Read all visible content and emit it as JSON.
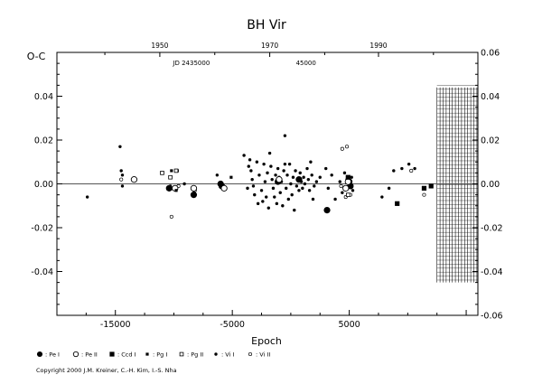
{
  "chart_data": {
    "type": "scatter",
    "title": "BH  Vir",
    "ylabel": "O-C",
    "xlabel": "Epoch",
    "xlim": [
      -20000,
      16000
    ],
    "ylim": [
      -0.06,
      0.06
    ],
    "x_ticks": [
      {
        "value": -15000,
        "label": "-15000"
      },
      {
        "value": -5000,
        "label": "-5000"
      },
      {
        "value": 5000,
        "label": "5000"
      }
    ],
    "y_ticks": [
      {
        "value": 0.04,
        "label": "0.04"
      },
      {
        "value": 0.02,
        "label": "0.02"
      },
      {
        "value": 0.0,
        "label": "0.00"
      },
      {
        "value": -0.02,
        "label": "-0.02"
      },
      {
        "value": -0.04,
        "label": "-0.04"
      }
    ],
    "y_ticks_right": [
      {
        "value": 0.06,
        "label": "0.06"
      },
      {
        "value": 0.04,
        "label": "0.04"
      },
      {
        "value": 0.02,
        "label": "0.02"
      },
      {
        "value": 0.0,
        "label": "0.00"
      },
      {
        "value": -0.02,
        "label": "-0.02"
      },
      {
        "value": -0.04,
        "label": "-0.04"
      },
      {
        "value": -0.06,
        "label": "-0.06"
      }
    ],
    "year_ticks": [
      {
        "value": -11200,
        "label": "1950"
      },
      {
        "value": -1800,
        "label": "1970"
      },
      {
        "value": 7500,
        "label": "1990"
      }
    ],
    "year_minor_ticks": [
      -15900,
      -6500,
      2900,
      12200
    ],
    "jd_labels": [
      {
        "value": -8500,
        "label": "JD 2435000"
      },
      {
        "value": 1300,
        "label": "45000"
      }
    ],
    "future_region_start": 12500,
    "grid": false,
    "legend_position": "bottom",
    "legend": [
      {
        "symbol": "pe1",
        "label": ": Pe I"
      },
      {
        "symbol": "pe2",
        "label": ": Pe II"
      },
      {
        "symbol": "ccd1",
        "label": ": Ccd I"
      },
      {
        "symbol": "pg1",
        "label": ": Pg I"
      },
      {
        "symbol": "pg2",
        "label": ": Pg II"
      },
      {
        "symbol": "vi1",
        "label": ": Vi I"
      },
      {
        "symbol": "vi2",
        "label": ": Vi II"
      }
    ],
    "series": [
      {
        "symbol": "vi1",
        "points": [
          [
            -17400,
            -0.006
          ],
          [
            -14600,
            0.017
          ],
          [
            -14500,
            0.006
          ],
          [
            -14400,
            0.004
          ],
          [
            -14400,
            -0.001
          ],
          [
            -4000,
            0.013
          ],
          [
            -3600,
            0.008
          ],
          [
            -3400,
            0.006
          ],
          [
            -3300,
            0.002
          ],
          [
            -3200,
            -0.001
          ],
          [
            -3100,
            -0.005
          ],
          [
            -2900,
            0.01
          ],
          [
            -2700,
            0.004
          ],
          [
            -2500,
            -0.003
          ],
          [
            -2400,
            -0.008
          ],
          [
            -2300,
            0.009
          ],
          [
            -2200,
            0.001
          ],
          [
            -2100,
            -0.006
          ],
          [
            -2000,
            0.005
          ],
          [
            -1900,
            -0.011
          ],
          [
            -1700,
            0.008
          ],
          [
            -1600,
            0.002
          ],
          [
            -1500,
            -0.002
          ],
          [
            -1400,
            -0.006
          ],
          [
            -1300,
            0.004
          ],
          [
            -1200,
            -0.009
          ],
          [
            -1100,
            0.007
          ],
          [
            -1000,
            0.003
          ],
          [
            -900,
            -0.004
          ],
          [
            -800,
            0.001
          ],
          [
            -700,
            -0.01
          ],
          [
            -600,
            0.006
          ],
          [
            -500,
            0.022
          ],
          [
            -400,
            -0.002
          ],
          [
            -300,
            0.004
          ],
          [
            -200,
            -0.007
          ],
          [
            -100,
            0.009
          ],
          [
            0,
            0.0
          ],
          [
            100,
            -0.005
          ],
          [
            200,
            0.003
          ],
          [
            300,
            -0.012
          ],
          [
            400,
            0.006
          ],
          [
            500,
            -0.001
          ],
          [
            600,
            0.002
          ],
          [
            700,
            -0.003
          ],
          [
            800,
            0.005
          ],
          [
            900,
            0.001
          ],
          [
            1000,
            -0.002
          ],
          [
            1100,
            0.003
          ],
          [
            1200,
            0.0
          ],
          [
            1400,
            0.007
          ],
          [
            1500,
            0.002
          ],
          [
            1600,
            -0.003
          ],
          [
            1700,
            0.01
          ],
          [
            1800,
            0.004
          ],
          [
            2000,
            -0.001
          ],
          [
            2200,
            0.001
          ],
          [
            2500,
            0.003
          ],
          [
            3000,
            0.007
          ],
          [
            3200,
            -0.002
          ],
          [
            3500,
            0.004
          ],
          [
            3800,
            -0.007
          ],
          [
            4200,
            0.001
          ],
          [
            4400,
            -0.004
          ],
          [
            4600,
            0.005
          ],
          [
            4800,
            0.002
          ],
          [
            5000,
            0.0
          ],
          [
            5200,
            0.003
          ],
          [
            5300,
            -0.003
          ],
          [
            7800,
            -0.006
          ],
          [
            8400,
            -0.002
          ],
          [
            8800,
            0.006
          ],
          [
            9500,
            0.007
          ],
          [
            10100,
            0.009
          ],
          [
            10600,
            0.007
          ],
          [
            -6300,
            0.004
          ],
          [
            -5900,
            0.0
          ],
          [
            -10300,
            -0.001
          ],
          [
            -9100,
            0.0
          ],
          [
            -1800,
            0.014
          ],
          [
            -2800,
            -0.009
          ],
          [
            -3700,
            -0.002
          ],
          [
            -3500,
            0.011
          ],
          [
            -500,
            0.009
          ],
          [
            1900,
            -0.007
          ]
        ]
      },
      {
        "symbol": "vi2",
        "points": [
          [
            -14500,
            0.002
          ],
          [
            -10200,
            -0.015
          ],
          [
            -8200,
            -0.003
          ],
          [
            4700,
            -0.006
          ],
          [
            4800,
            0.017
          ],
          [
            4400,
            0.016
          ],
          [
            5100,
            -0.005
          ],
          [
            4300,
            -0.001
          ],
          [
            10300,
            0.006
          ],
          [
            11400,
            -0.005
          ],
          [
            -9600,
            -0.001
          ]
        ]
      },
      {
        "symbol": "pe1",
        "points": [
          [
            -10400,
            -0.002
          ],
          [
            -8300,
            -0.005
          ],
          [
            -6000,
            0.0
          ],
          [
            -5900,
            -0.001
          ],
          [
            -1100,
            0.001
          ],
          [
            700,
            0.002
          ],
          [
            3100,
            -0.012
          ],
          [
            5000,
            0.001
          ],
          [
            5100,
            -0.001
          ]
        ]
      },
      {
        "symbol": "pe2",
        "points": [
          [
            -13400,
            0.002
          ],
          [
            -9900,
            -0.002
          ],
          [
            -8300,
            -0.002
          ],
          [
            4900,
            0.001
          ],
          [
            -1000,
            0.002
          ],
          [
            -5700,
            -0.002
          ],
          [
            4700,
            -0.002
          ]
        ]
      },
      {
        "symbol": "ccd1",
        "points": [
          [
            9100,
            -0.009
          ],
          [
            11400,
            -0.002
          ],
          [
            12000,
            -0.001
          ],
          [
            4900,
            0.003
          ]
        ]
      },
      {
        "symbol": "pg1",
        "points": [
          [
            -10200,
            0.006
          ],
          [
            -9700,
            0.006
          ],
          [
            -5100,
            0.003
          ],
          [
            -9800,
            -0.003
          ]
        ]
      },
      {
        "symbol": "pg2",
        "points": [
          [
            -11000,
            0.005
          ],
          [
            -9800,
            0.006
          ],
          [
            -10300,
            0.003
          ],
          [
            4900,
            -0.005
          ]
        ]
      }
    ]
  },
  "footer": {
    "copyright": "Copyright 2000 J.M. Kreiner, C.-H. Kim, I.-S. Nha"
  }
}
